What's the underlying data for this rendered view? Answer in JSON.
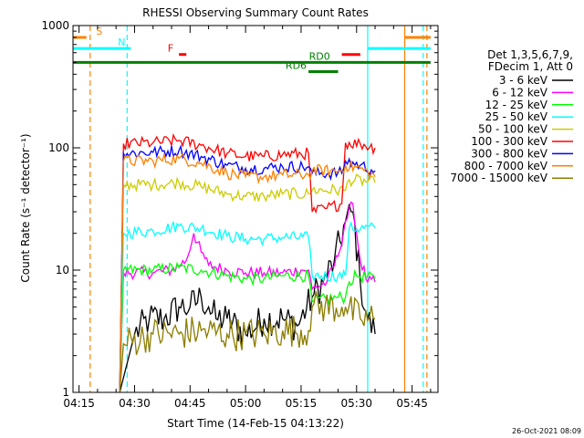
{
  "chart_data": {
    "type": "line",
    "title": "RHESSI Observing Summary Count Rates",
    "xlabel": "Start Time (14-Feb-15 04:13:22)",
    "ylabel": "Count Rate (s⁻¹ detector⁻¹)",
    "xlim": [
      "04:13:22",
      "05:52:00"
    ],
    "ylim": [
      1,
      1000
    ],
    "y_scale": "log",
    "x_ticks": [
      "04:15",
      "04:30",
      "04:45",
      "05:00",
      "05:15",
      "05:30",
      "05:45"
    ],
    "y_ticks": [
      "1",
      "10",
      "100",
      "1000"
    ],
    "legend_header": [
      "Det 1,3,5,6,7,9,",
      "FDecim 1, Att 0"
    ],
    "legend_placement": "right",
    "timestamp": "26-Oct-2021 08:09",
    "series": [
      {
        "name": "3 - 6 keV",
        "color": "#000000",
        "points": [
          [
            "04:26",
            1
          ],
          [
            "04:30",
            3
          ],
          [
            "04:34",
            4
          ],
          [
            "04:38",
            4
          ],
          [
            "04:42",
            5
          ],
          [
            "04:45",
            5
          ],
          [
            "04:48",
            6
          ],
          [
            "04:50",
            5
          ],
          [
            "04:52",
            4
          ],
          [
            "04:55",
            4
          ],
          [
            "05:00",
            3
          ],
          [
            "05:05",
            4
          ],
          [
            "05:10",
            4
          ],
          [
            "05:14",
            3.5
          ],
          [
            "05:18",
            6
          ],
          [
            "05:21",
            8
          ],
          [
            "05:24",
            12
          ],
          [
            "05:27",
            25
          ],
          [
            "05:29",
            30
          ],
          [
            "05:31",
            8
          ],
          [
            "05:33",
            4
          ],
          [
            "05:35",
            3
          ]
        ]
      },
      {
        "name": "6 - 12 keV",
        "color": "#ff00ff",
        "points": [
          [
            "04:26",
            1
          ],
          [
            "04:27",
            9.5
          ],
          [
            "04:35",
            9.5
          ],
          [
            "04:40",
            10
          ],
          [
            "04:44",
            12
          ],
          [
            "04:46",
            20
          ],
          [
            "04:48",
            14
          ],
          [
            "04:50",
            11
          ],
          [
            "04:55",
            10
          ],
          [
            "05:00",
            9.5
          ],
          [
            "05:05",
            9.5
          ],
          [
            "05:10",
            9.5
          ],
          [
            "05:15",
            10
          ],
          [
            "05:17",
            10
          ],
          [
            "05:18",
            7
          ],
          [
            "05:22",
            8
          ],
          [
            "05:25",
            13
          ],
          [
            "05:27",
            25
          ],
          [
            "05:29",
            35
          ],
          [
            "05:31",
            12
          ],
          [
            "05:33",
            8
          ],
          [
            "05:35",
            8
          ]
        ]
      },
      {
        "name": "12 - 25 keV",
        "color": "#00ff00",
        "points": [
          [
            "04:26",
            1
          ],
          [
            "04:27",
            10
          ],
          [
            "04:35",
            10
          ],
          [
            "04:42",
            10.5
          ],
          [
            "04:48",
            10
          ],
          [
            "04:55",
            9
          ],
          [
            "05:00",
            8.5
          ],
          [
            "05:05",
            8.5
          ],
          [
            "05:10",
            9
          ],
          [
            "05:17",
            9
          ],
          [
            "05:18",
            5.5
          ],
          [
            "05:25",
            6
          ],
          [
            "05:27",
            6
          ],
          [
            "05:28",
            8
          ],
          [
            "05:30",
            9
          ],
          [
            "05:35",
            8.5
          ]
        ]
      },
      {
        "name": "25 - 50 keV",
        "color": "#00ffff",
        "points": [
          [
            "04:26",
            1
          ],
          [
            "04:27",
            20
          ],
          [
            "04:35",
            21
          ],
          [
            "04:42",
            23
          ],
          [
            "04:48",
            22
          ],
          [
            "04:55",
            19
          ],
          [
            "05:00",
            18
          ],
          [
            "05:05",
            18
          ],
          [
            "05:10",
            18.5
          ],
          [
            "05:17",
            18.5
          ],
          [
            "05:18",
            9
          ],
          [
            "05:25",
            9
          ],
          [
            "05:27",
            9
          ],
          [
            "05:28",
            22
          ],
          [
            "05:35",
            22
          ]
        ]
      },
      {
        "name": "50 - 100 keV",
        "color": "#cccc00",
        "points": [
          [
            "04:26",
            1
          ],
          [
            "04:27",
            50
          ],
          [
            "04:35",
            50
          ],
          [
            "04:42",
            52
          ],
          [
            "04:48",
            48
          ],
          [
            "04:55",
            42
          ],
          [
            "05:00",
            40
          ],
          [
            "05:05",
            40
          ],
          [
            "05:10",
            42
          ],
          [
            "05:17",
            42
          ],
          [
            "05:18",
            45
          ],
          [
            "05:27",
            45
          ],
          [
            "05:28",
            55
          ],
          [
            "05:35",
            52
          ]
        ]
      },
      {
        "name": "100 - 300 keV",
        "color": "#ff0000",
        "points": [
          [
            "04:26",
            1
          ],
          [
            "04:27",
            108
          ],
          [
            "04:35",
            110
          ],
          [
            "04:42",
            115
          ],
          [
            "04:48",
            105
          ],
          [
            "04:55",
            90
          ],
          [
            "05:00",
            85
          ],
          [
            "05:05",
            85
          ],
          [
            "05:10",
            88
          ],
          [
            "05:17",
            90
          ],
          [
            "05:18",
            30
          ],
          [
            "05:22",
            32
          ],
          [
            "05:26",
            35
          ],
          [
            "05:27",
            110
          ],
          [
            "05:31",
            108
          ],
          [
            "05:35",
            100
          ]
        ]
      },
      {
        "name": "300 - 800 keV",
        "color": "#0000ff",
        "points": [
          [
            "04:26",
            1
          ],
          [
            "04:27",
            90
          ],
          [
            "04:35",
            92
          ],
          [
            "04:42",
            95
          ],
          [
            "04:48",
            85
          ],
          [
            "04:55",
            72
          ],
          [
            "05:00",
            68
          ],
          [
            "05:05",
            68
          ],
          [
            "05:10",
            70
          ],
          [
            "05:17",
            70
          ],
          [
            "05:18",
            62
          ],
          [
            "05:26",
            62
          ],
          [
            "05:27",
            78
          ],
          [
            "05:31",
            72
          ],
          [
            "05:35",
            65
          ]
        ]
      },
      {
        "name": "800 - 7000 keV",
        "color": "#ff8000",
        "points": [
          [
            "04:26",
            1
          ],
          [
            "04:27",
            78
          ],
          [
            "04:35",
            78
          ],
          [
            "04:42",
            82
          ],
          [
            "04:48",
            75
          ],
          [
            "04:55",
            62
          ],
          [
            "05:00",
            58
          ],
          [
            "05:05",
            58
          ],
          [
            "05:10",
            60
          ],
          [
            "05:17",
            60
          ],
          [
            "05:18",
            65
          ],
          [
            "05:26",
            65
          ],
          [
            "05:27",
            72
          ],
          [
            "05:31",
            68
          ],
          [
            "05:35",
            58
          ]
        ]
      },
      {
        "name": "7000 - 15000 keV",
        "color": "#8b7d00",
        "points": [
          [
            "04:26",
            1
          ],
          [
            "04:27",
            2.5
          ],
          [
            "04:35",
            3
          ],
          [
            "04:42",
            3
          ],
          [
            "04:48",
            3.2
          ],
          [
            "04:55",
            3
          ],
          [
            "05:00",
            3
          ],
          [
            "05:05",
            3
          ],
          [
            "05:10",
            3.2
          ],
          [
            "05:17",
            3.2
          ],
          [
            "05:18",
            5
          ],
          [
            "05:26",
            5
          ],
          [
            "05:27",
            5
          ],
          [
            "05:31",
            4
          ],
          [
            "05:35",
            4
          ]
        ]
      }
    ],
    "markers": [
      {
        "label": "S",
        "color": "#ff8000",
        "style": "solid",
        "start": "04:13:22",
        "end": "04:17",
        "level": 800
      },
      {
        "label": "",
        "color": "#ff8000",
        "style": "solid",
        "start": "05:43",
        "end": "05:50",
        "level": 800
      },
      {
        "label": "N",
        "color": "#00ffff",
        "style": "solid",
        "start": "04:13:22",
        "end": "04:29",
        "level": 650
      },
      {
        "label": "",
        "color": "#00ffff",
        "style": "solid",
        "start": "05:33",
        "end": "05:50",
        "level": 650
      },
      {
        "label": "F",
        "color": "#ff0000",
        "style": "solid",
        "start": "04:42",
        "end": "04:44",
        "level": 580
      },
      {
        "label": "",
        "color": "#ff0000",
        "style": "solid",
        "start": "05:26",
        "end": "05:31",
        "level": 580
      },
      {
        "label": "RD0",
        "color": "#008000",
        "style": "solid",
        "start": "04:13:22",
        "end": "05:50",
        "level": 500
      },
      {
        "label": "RD6",
        "color": "#008000",
        "style": "solid",
        "start": "05:17",
        "end": "05:25",
        "level": 420
      }
    ],
    "vlines": [
      {
        "time": "04:18",
        "color": "#ff8000",
        "style": "dashed"
      },
      {
        "time": "04:28",
        "color": "#00ffff",
        "style": "dashed"
      },
      {
        "time": "05:33",
        "color": "#00ffff",
        "style": "solid"
      },
      {
        "time": "05:43",
        "color": "#ff8000",
        "style": "solid"
      },
      {
        "time": "05:48",
        "color": "#00ffff",
        "style": "dashed"
      },
      {
        "time": "05:49",
        "color": "#ff8000",
        "style": "dashed"
      }
    ]
  }
}
